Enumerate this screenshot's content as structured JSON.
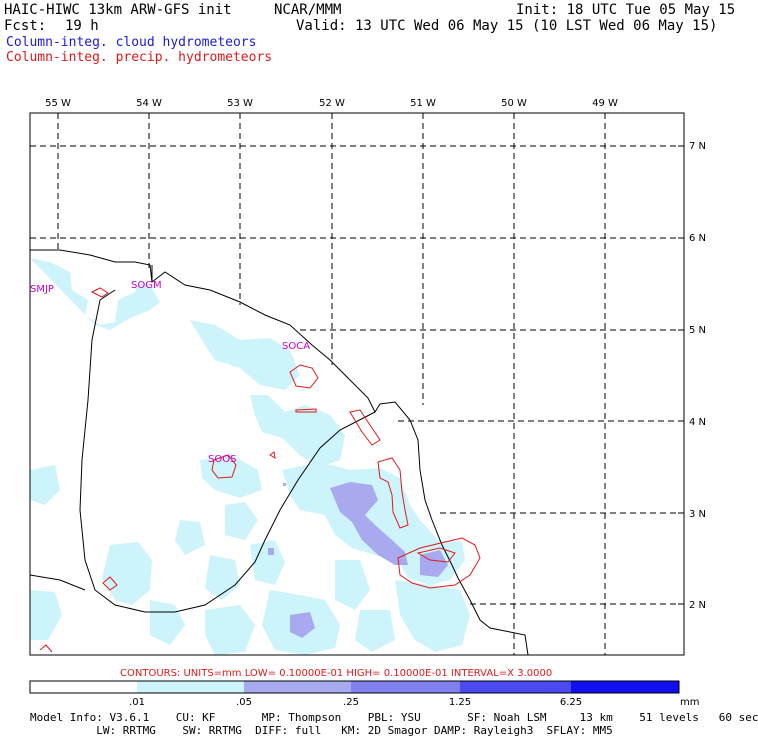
{
  "header": {
    "model": "HAIC-HIWC 13km ARW-GFS init",
    "org": "NCAR/MMM",
    "init": "Init: 18 UTC Tue 05 May 15",
    "fcst_label": "Fcst:",
    "fcst_value": "19 h",
    "valid": "Valid: 13 UTC Wed 06 May 15 (10 LST Wed 06 May 15)",
    "field_cloud": "Column-integ. cloud hydrometeors",
    "field_precip": "Column-integ. precip. hydrometeors"
  },
  "colors": {
    "cloud_text": "#1a1ad9",
    "precip_text": "#e01a1a",
    "shade_1": "#cdf3fb",
    "shade_2": "#a9a9f0",
    "shade_3": "#8080ee",
    "shade_4": "#4a4af0",
    "shade_5": "#0f0ff0",
    "contour": "#e01a1a",
    "station": "#cc00cc"
  },
  "map": {
    "lon_labels": [
      "55 W",
      "54 W",
      "53 W",
      "52 W",
      "51 W",
      "50 W",
      "49 W"
    ],
    "lat_labels": [
      "7 N",
      "6 N",
      "5 N",
      "4 N",
      "3 N",
      "2 N"
    ],
    "stations": [
      "SMJP",
      "SOGM",
      "SOCA",
      "SOOS"
    ]
  },
  "contour_info": "CONTOURS:  UNITS=mm  LOW= 0.10000E-01  HIGH= 0.10000E-01  INTERVAL=X  3.0000",
  "colorbar": {
    "ticks": [
      ".01",
      ".05",
      ".25",
      "1.25",
      "6.25"
    ],
    "units": "mm"
  },
  "footer": {
    "line1": "Model Info: V3.6.1    CU: KF       MP: Thompson    PBL: YSU       SF: Noah LSM     13 km    51 levels   60 sec",
    "line2": "          LW: RRTMG    SW: RRTMG  DIFF: full   KM: 2D Smagor DAMP: Rayleigh3  SFLAY: MM5"
  }
}
